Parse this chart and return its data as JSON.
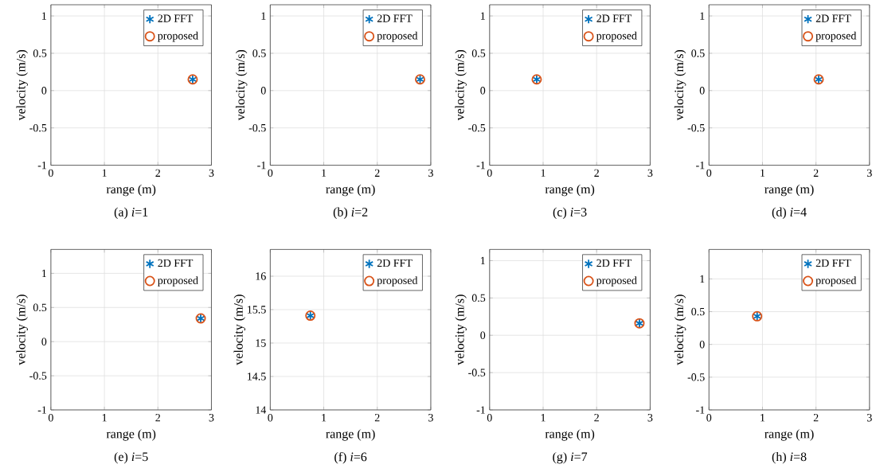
{
  "chart_data": [
    {
      "type": "scatter",
      "xlabel": "range (m)",
      "ylabel": "velocity (m/s)",
      "annotations": [
        "(a) *i*=1"
      ],
      "xlim": [
        0,
        3
      ],
      "ylim": [
        -1,
        1.15
      ],
      "xticks": [
        0,
        1,
        2,
        3
      ],
      "yticks": [
        -1,
        -0.5,
        0,
        0.5,
        1
      ],
      "grid": true,
      "legend": "top right",
      "series": [
        {
          "name": "2D FFT",
          "color": "#0072bd",
          "marker": "cross",
          "x": [
            2.65
          ],
          "values": [
            0.15
          ]
        },
        {
          "name": "proposed",
          "color": "#d95319",
          "marker": "circle",
          "x": [
            2.65
          ],
          "values": [
            0.15
          ]
        }
      ]
    },
    {
      "type": "scatter",
      "xlabel": "range (m)",
      "ylabel": "velocity (m/s)",
      "annotations": [
        "(b) *i*=2"
      ],
      "xlim": [
        0,
        3
      ],
      "ylim": [
        -1,
        1.15
      ],
      "xticks": [
        0,
        1,
        2,
        3
      ],
      "yticks": [
        -1,
        -0.5,
        0,
        0.5,
        1
      ],
      "grid": true,
      "legend": "top right",
      "series": [
        {
          "name": "2D FFT",
          "color": "#0072bd",
          "marker": "cross",
          "x": [
            2.8
          ],
          "values": [
            0.15
          ]
        },
        {
          "name": "proposed",
          "color": "#d95319",
          "marker": "circle",
          "x": [
            2.8
          ],
          "values": [
            0.15
          ]
        }
      ]
    },
    {
      "type": "scatter",
      "xlabel": "range (m)",
      "ylabel": "velocity (m/s)",
      "annotations": [
        "(c) *i*=3"
      ],
      "xlim": [
        0,
        3
      ],
      "ylim": [
        -1,
        1.15
      ],
      "xticks": [
        0,
        1,
        2,
        3
      ],
      "yticks": [
        -1,
        -0.5,
        0,
        0.5,
        1
      ],
      "grid": true,
      "legend": "top right",
      "series": [
        {
          "name": "2D FFT",
          "color": "#0072bd",
          "marker": "cross",
          "x": [
            0.88
          ],
          "values": [
            0.15
          ]
        },
        {
          "name": "proposed",
          "color": "#d95319",
          "marker": "circle",
          "x": [
            0.88
          ],
          "values": [
            0.15
          ]
        }
      ]
    },
    {
      "type": "scatter",
      "xlabel": "range (m)",
      "ylabel": "velocity (m/s)",
      "annotations": [
        "(d) *i*=4"
      ],
      "xlim": [
        0,
        3
      ],
      "ylim": [
        -1,
        1.15
      ],
      "xticks": [
        0,
        1,
        2,
        3
      ],
      "yticks": [
        -1,
        -0.5,
        0,
        0.5,
        1
      ],
      "grid": true,
      "legend": "top right",
      "series": [
        {
          "name": "2D FFT",
          "color": "#0072bd",
          "marker": "cross",
          "x": [
            2.05
          ],
          "values": [
            0.15
          ]
        },
        {
          "name": "proposed",
          "color": "#d95319",
          "marker": "circle",
          "x": [
            2.05
          ],
          "values": [
            0.15
          ]
        }
      ]
    },
    {
      "type": "scatter",
      "xlabel": "range (m)",
      "ylabel": "velocity (m/s)",
      "annotations": [
        "(e) *i*=5"
      ],
      "xlim": [
        0,
        3
      ],
      "ylim": [
        -1,
        1.35
      ],
      "xticks": [
        0,
        1,
        2,
        3
      ],
      "yticks": [
        -1,
        -0.5,
        0,
        0.5,
        1
      ],
      "grid": true,
      "legend": "top right",
      "series": [
        {
          "name": "2D FFT",
          "color": "#0072bd",
          "marker": "cross",
          "x": [
            2.8
          ],
          "values": [
            0.34
          ]
        },
        {
          "name": "proposed",
          "color": "#d95319",
          "marker": "circle",
          "x": [
            2.8
          ],
          "values": [
            0.34
          ]
        }
      ]
    },
    {
      "type": "scatter",
      "xlabel": "range (m)",
      "ylabel": "velocity (m/s)",
      "annotations": [
        "(f) *i*=6"
      ],
      "xlim": [
        0,
        3
      ],
      "ylim": [
        14,
        16.4
      ],
      "xticks": [
        0,
        1,
        2,
        3
      ],
      "yticks": [
        14,
        14.5,
        15,
        15.5,
        16
      ],
      "grid": true,
      "legend": "top right",
      "series": [
        {
          "name": "2D FFT",
          "color": "#0072bd",
          "marker": "cross",
          "x": [
            0.75
          ],
          "values": [
            15.41
          ]
        },
        {
          "name": "proposed",
          "color": "#d95319",
          "marker": "circle",
          "x": [
            0.75
          ],
          "values": [
            15.41
          ]
        }
      ]
    },
    {
      "type": "scatter",
      "xlabel": "range (m)",
      "ylabel": "velocity (m/s)",
      "annotations": [
        "(g) *i*=7"
      ],
      "xlim": [
        0,
        3
      ],
      "ylim": [
        -1,
        1.15
      ],
      "xticks": [
        0,
        1,
        2,
        3
      ],
      "yticks": [
        -1,
        -0.5,
        0,
        0.5,
        1
      ],
      "grid": true,
      "legend": "top right",
      "series": [
        {
          "name": "2D FFT",
          "color": "#0072bd",
          "marker": "cross",
          "x": [
            2.8
          ],
          "values": [
            0.16
          ]
        },
        {
          "name": "proposed",
          "color": "#d95319",
          "marker": "circle",
          "x": [
            2.8
          ],
          "values": [
            0.16
          ]
        }
      ]
    },
    {
      "type": "scatter",
      "xlabel": "range (m)",
      "ylabel": "velocity (m/s)",
      "annotations": [
        "(h) *i*=8"
      ],
      "xlim": [
        0,
        3
      ],
      "ylim": [
        -1,
        1.45
      ],
      "xticks": [
        0,
        1,
        2,
        3
      ],
      "yticks": [
        -1,
        -0.5,
        0,
        0.5,
        1
      ],
      "grid": true,
      "legend": "top right",
      "series": [
        {
          "name": "2D FFT",
          "color": "#0072bd",
          "marker": "cross",
          "x": [
            0.9
          ],
          "values": [
            0.43
          ]
        },
        {
          "name": "proposed",
          "color": "#d95319",
          "marker": "circle",
          "x": [
            0.9
          ],
          "values": [
            0.43
          ]
        }
      ]
    }
  ]
}
